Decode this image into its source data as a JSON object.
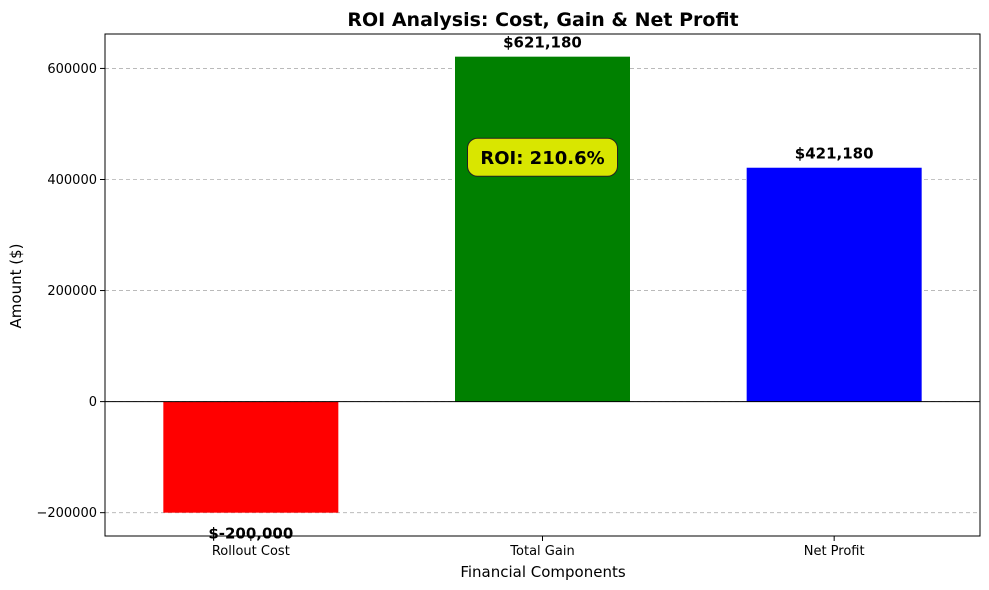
{
  "chart_data": {
    "type": "bar",
    "title": "ROI Analysis: Cost, Gain & Net Profit",
    "xlabel": "Financial Components",
    "ylabel": "Amount ($)",
    "categories": [
      "Rollout Cost",
      "Total Gain",
      "Net Profit"
    ],
    "values": [
      -200000,
      621180,
      421180
    ],
    "value_labels": [
      "$-200,000",
      "$621,180",
      "$421,180"
    ],
    "colors": [
      "#ff0000",
      "#008000",
      "#0000ff"
    ],
    "ylim": [
      -242000,
      662000
    ],
    "yticks": [
      -200000,
      0,
      200000,
      400000,
      600000
    ],
    "ytick_labels": [
      "−200000",
      "0",
      "200000",
      "400000",
      "600000"
    ],
    "grid": "y-dashed",
    "annotation": {
      "text": "ROI: 210.6%",
      "background": "#d9e600",
      "category": "Total Gain",
      "y": 440000
    }
  }
}
